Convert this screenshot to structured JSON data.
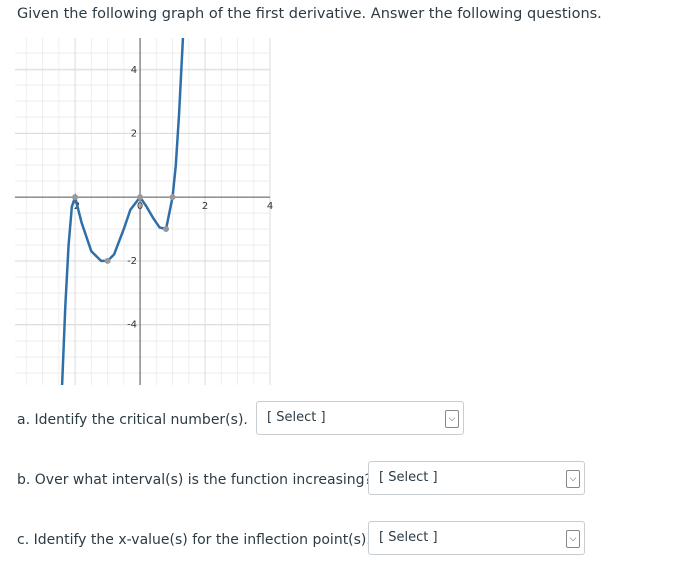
{
  "prompt": "Given the following graph of the first derivative. Answer the following questions.",
  "graph": {
    "type": "line",
    "xlim": [
      -3.85,
      4
    ],
    "ylim": [
      -5.9,
      5
    ],
    "xticks": [
      -2,
      0,
      2,
      4
    ],
    "yticks": [
      -4,
      -2,
      2,
      4
    ],
    "color": "#2f6fa8",
    "curve": {
      "x": [
        -2.4,
        -2.3,
        -2.2,
        -2.1,
        -2,
        -1.8,
        -1.5,
        -1.2,
        -1,
        -0.8,
        -0.5,
        -0.3,
        0,
        0.2,
        0.4,
        0.6,
        0.8,
        1,
        1.1,
        1.2,
        1.32
      ],
      "y": [
        -5.9,
        -3.4,
        -1.5,
        -0.3,
        0,
        -0.8,
        -1.7,
        -2,
        -2,
        -1.8,
        -1,
        -0.4,
        0,
        -0.3,
        -0.65,
        -0.95,
        -1,
        0,
        1,
        2.6,
        5
      ]
    },
    "points": {
      "x": [
        -2,
        -1,
        0,
        0.8,
        1
      ],
      "y": [
        0,
        -2,
        0,
        -1,
        0
      ]
    }
  },
  "questions": [
    {
      "text": "a. Identify the critical number(s).",
      "select": "[ Select ]"
    },
    {
      "text": "b. Over what interval(s) is the function increasing?",
      "select": "[ Select ]"
    },
    {
      "text": "c. Identify the x-value(s) for the inflection point(s).",
      "select": "[ Select ]"
    }
  ]
}
